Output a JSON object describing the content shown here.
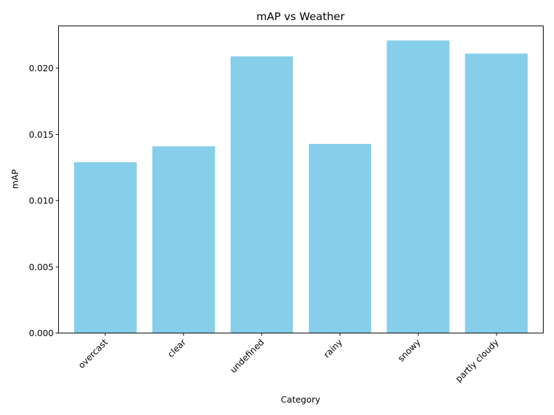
{
  "chart_data": {
    "type": "bar",
    "title": "mAP vs Weather",
    "xlabel": "Category",
    "ylabel": "mAP",
    "categories": [
      "overcast",
      "clear",
      "undefined",
      "rainy",
      "snowy",
      "partly cloudy"
    ],
    "values": [
      0.0129,
      0.0141,
      0.0209,
      0.0143,
      0.0221,
      0.0211
    ],
    "ylim": [
      0,
      0.0232
    ],
    "yticks": [
      0.0,
      0.005,
      0.01,
      0.015,
      0.02
    ],
    "ytick_labels": [
      "0.000",
      "0.005",
      "0.010",
      "0.015",
      "0.020"
    ],
    "bar_color": "#87CEEB",
    "grid": false,
    "xtick_rotation": "45 degrees"
  }
}
